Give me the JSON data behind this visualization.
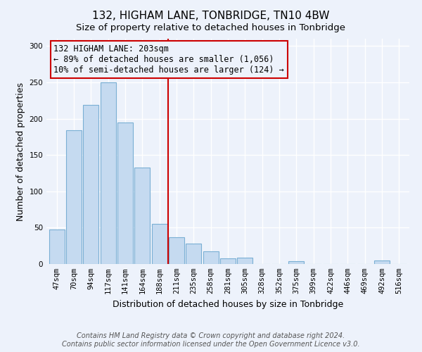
{
  "title": "132, HIGHAM LANE, TONBRIDGE, TN10 4BW",
  "subtitle": "Size of property relative to detached houses in Tonbridge",
  "xlabel": "Distribution of detached houses by size in Tonbridge",
  "ylabel": "Number of detached properties",
  "bar_labels": [
    "47sqm",
    "70sqm",
    "94sqm",
    "117sqm",
    "141sqm",
    "164sqm",
    "188sqm",
    "211sqm",
    "235sqm",
    "258sqm",
    "281sqm",
    "305sqm",
    "328sqm",
    "352sqm",
    "375sqm",
    "399sqm",
    "422sqm",
    "446sqm",
    "469sqm",
    "492sqm",
    "516sqm"
  ],
  "bar_values": [
    47,
    184,
    219,
    250,
    195,
    133,
    55,
    37,
    28,
    17,
    8,
    9,
    0,
    0,
    4,
    0,
    0,
    0,
    0,
    5,
    0
  ],
  "bar_color": "#c5daf0",
  "bar_edgecolor": "#7aafd4",
  "vline_position": 7.0,
  "vline_color": "#cc0000",
  "annotation_line1": "132 HIGHAM LANE: 203sqm",
  "annotation_line2": "← 89% of detached houses are smaller (1,056)",
  "annotation_line3": "10% of semi-detached houses are larger (124) →",
  "annotation_box_edgecolor": "#cc0000",
  "ylim": [
    0,
    310
  ],
  "yticks": [
    0,
    50,
    100,
    150,
    200,
    250,
    300
  ],
  "footer1": "Contains HM Land Registry data © Crown copyright and database right 2024.",
  "footer2": "Contains public sector information licensed under the Open Government Licence v3.0.",
  "background_color": "#edf2fb",
  "grid_color": "#ffffff",
  "title_fontsize": 11,
  "subtitle_fontsize": 9.5,
  "axis_label_fontsize": 9,
  "tick_fontsize": 7.5,
  "annotation_fontsize": 8.5,
  "footer_fontsize": 7
}
